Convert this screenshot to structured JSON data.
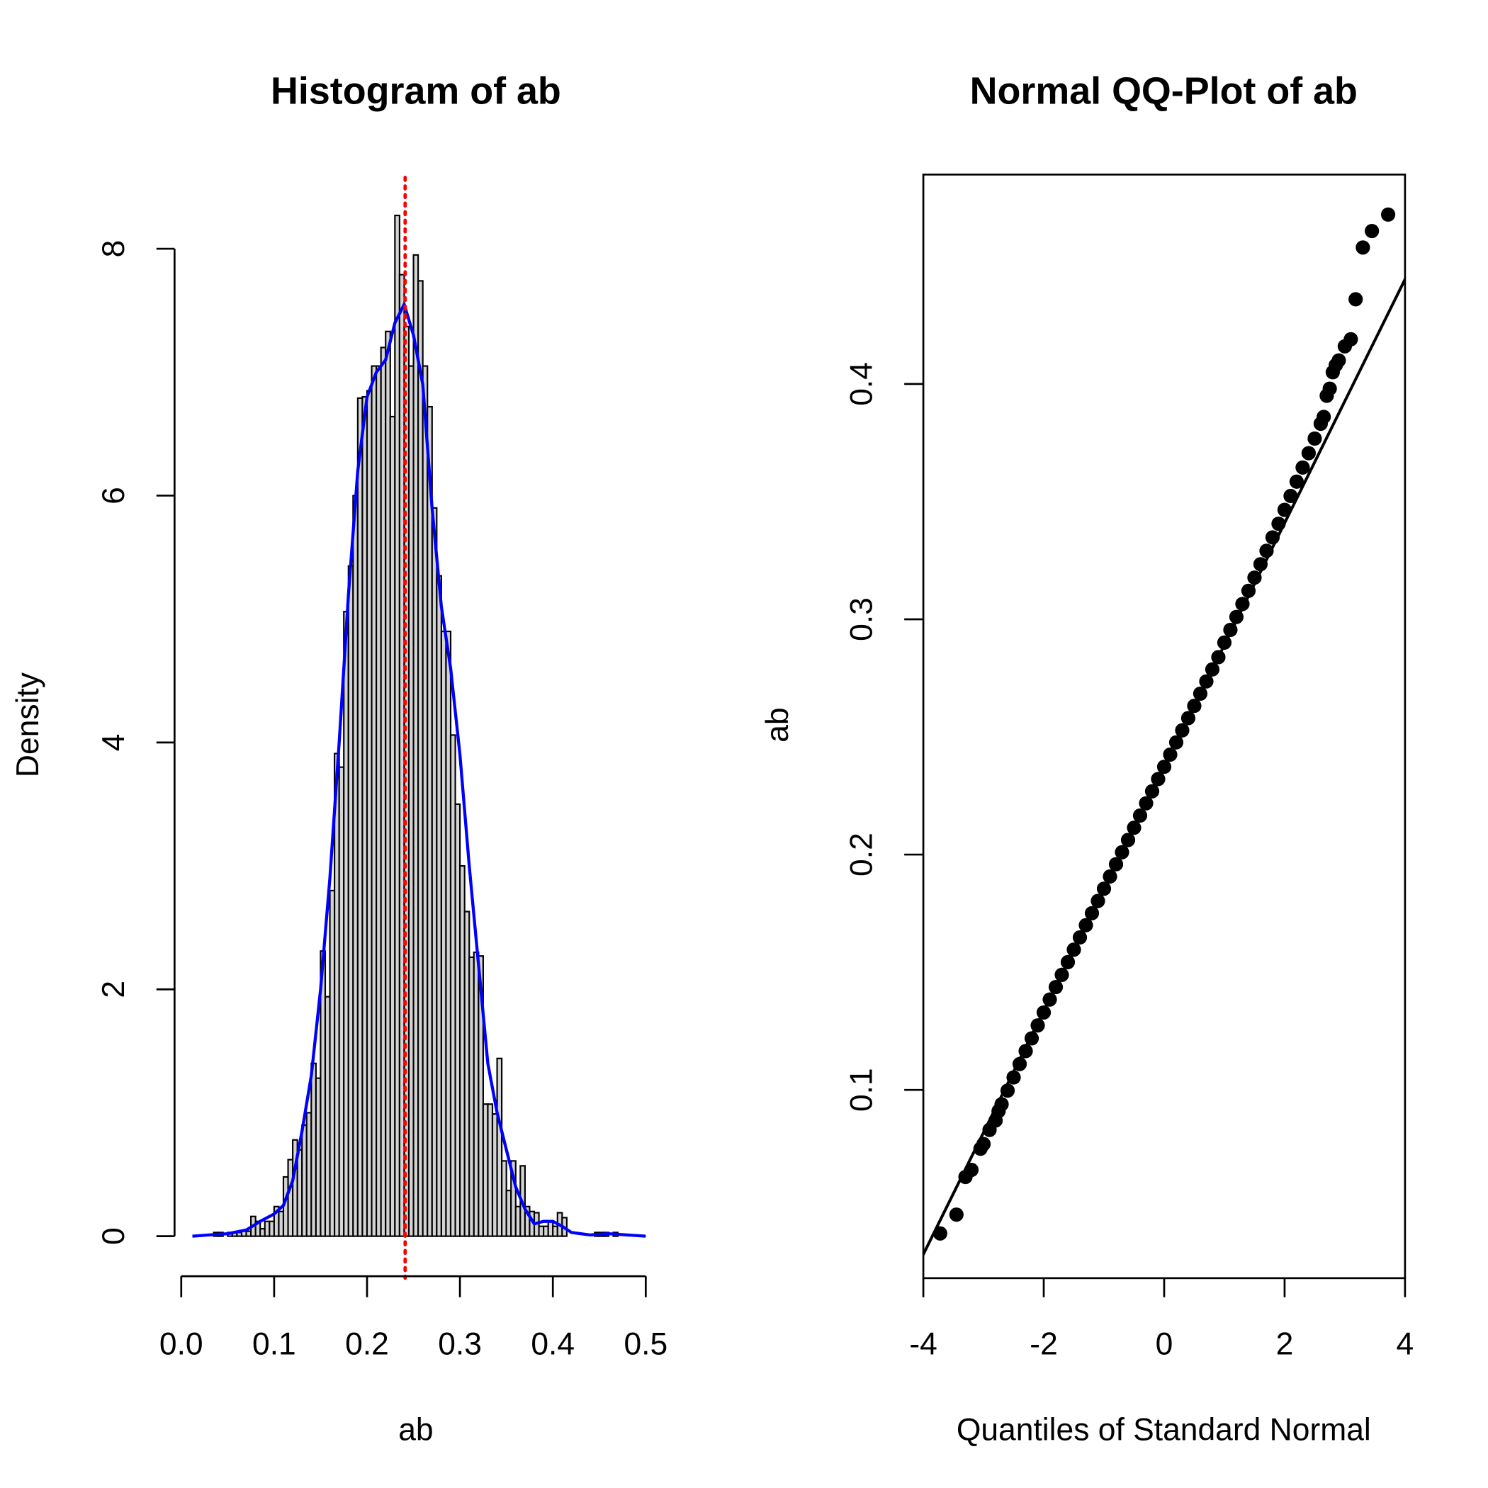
{
  "chart_data": [
    {
      "type": "bar",
      "subtype": "histogram with density curve",
      "title": "Histogram of ab",
      "xlabel": "ab",
      "ylabel": "Density",
      "xlim": [
        0.0,
        0.5
      ],
      "ylim": [
        0,
        8
      ],
      "xticks": [
        "0.0",
        "0.1",
        "0.2",
        "0.3",
        "0.4",
        "0.5"
      ],
      "yticks": [
        "0",
        "2",
        "4",
        "6",
        "8"
      ],
      "grid": false,
      "bin_width": 0.005,
      "bin_starts": [
        0.035,
        0.04,
        0.045,
        0.05,
        0.055,
        0.06,
        0.065,
        0.07,
        0.075,
        0.08,
        0.085,
        0.09,
        0.095,
        0.1,
        0.105,
        0.11,
        0.115,
        0.12,
        0.125,
        0.13,
        0.135,
        0.14,
        0.145,
        0.15,
        0.155,
        0.16,
        0.165,
        0.17,
        0.175,
        0.18,
        0.185,
        0.19,
        0.195,
        0.2,
        0.205,
        0.21,
        0.215,
        0.22,
        0.225,
        0.23,
        0.235,
        0.24,
        0.245,
        0.25,
        0.255,
        0.26,
        0.265,
        0.27,
        0.275,
        0.28,
        0.285,
        0.29,
        0.295,
        0.3,
        0.305,
        0.31,
        0.315,
        0.32,
        0.325,
        0.33,
        0.335,
        0.34,
        0.345,
        0.35,
        0.355,
        0.36,
        0.365,
        0.37,
        0.375,
        0.38,
        0.385,
        0.39,
        0.395,
        0.4,
        0.405,
        0.41,
        0.415,
        0.42,
        0.425,
        0.43,
        0.435,
        0.44,
        0.445,
        0.45,
        0.455,
        0.46,
        0.465,
        0.47,
        0.475
      ],
      "densities": [
        0.03,
        0.03,
        0.0,
        0.03,
        0.03,
        0.03,
        0.04,
        0.04,
        0.16,
        0.12,
        0.06,
        0.12,
        0.12,
        0.24,
        0.2,
        0.48,
        0.62,
        0.78,
        0.7,
        0.9,
        1.0,
        1.4,
        1.28,
        2.31,
        1.94,
        2.8,
        3.91,
        3.8,
        5.06,
        5.43,
        6.0,
        6.79,
        6.8,
        6.85,
        7.05,
        7.05,
        7.2,
        7.33,
        6.64,
        8.27,
        7.79,
        7.37,
        7.05,
        7.95,
        7.74,
        7.05,
        6.72,
        5.9,
        5.35,
        4.9,
        4.9,
        4.06,
        3.5,
        3.0,
        2.63,
        2.26,
        2.3,
        2.27,
        1.07,
        1.07,
        0.99,
        1.44,
        0.61,
        0.37,
        0.61,
        0.24,
        0.57,
        0.24,
        0.2,
        0.19,
        0.08,
        0.08,
        0.12,
        0.08,
        0.19,
        0.15,
        0.0,
        0.0,
        0.0,
        0.0,
        0.0,
        0.0,
        0.03,
        0.03,
        0.03,
        0.0,
        0.03,
        0.0,
        0.0
      ],
      "bar_fill": "#d3d3d3",
      "density_curve": {
        "color": "#0000ff",
        "x": [
          0.012,
          0.03,
          0.05,
          0.07,
          0.085,
          0.1,
          0.11,
          0.12,
          0.13,
          0.14,
          0.15,
          0.16,
          0.17,
          0.18,
          0.19,
          0.2,
          0.21,
          0.22,
          0.23,
          0.24,
          0.25,
          0.26,
          0.27,
          0.28,
          0.29,
          0.3,
          0.31,
          0.32,
          0.33,
          0.34,
          0.35,
          0.36,
          0.37,
          0.38,
          0.39,
          0.4,
          0.41,
          0.42,
          0.44,
          0.46,
          0.48,
          0.5
        ],
        "y": [
          0.0,
          0.01,
          0.02,
          0.05,
          0.12,
          0.18,
          0.25,
          0.45,
          0.85,
          1.3,
          2.0,
          2.9,
          4.0,
          5.2,
          6.2,
          6.8,
          7.0,
          7.1,
          7.4,
          7.55,
          7.3,
          6.9,
          5.9,
          5.1,
          4.6,
          3.9,
          3.0,
          2.2,
          1.4,
          1.0,
          0.7,
          0.4,
          0.22,
          0.1,
          0.12,
          0.12,
          0.08,
          0.03,
          0.01,
          0.02,
          0.01,
          0.0
        ]
      },
      "mean_line": {
        "x": 0.241,
        "color": "#ff0000",
        "style": "dotted"
      }
    },
    {
      "type": "scatter",
      "subtype": "normal QQ plot",
      "title": "Normal QQ-Plot of ab",
      "xlabel": "Quantiles of Standard Normal",
      "ylabel": "ab",
      "xlim": [
        -4,
        4
      ],
      "ylim": [
        0.02,
        0.489
      ],
      "xticks": [
        "-4",
        "-2",
        "0",
        "2",
        "4"
      ],
      "yticks": [
        "0.1",
        "0.2",
        "0.3",
        "0.4"
      ],
      "grid": false,
      "reference_line": {
        "intercept": 0.2373,
        "slope": 0.0518,
        "color": "#000000"
      },
      "points": {
        "x": [
          -3.72,
          -3.45,
          -3.3,
          -3.2,
          -3.05,
          -3.0,
          -2.9,
          -2.8,
          -2.75,
          -2.7,
          -2.6,
          -2.5,
          -2.4,
          -2.3,
          -2.2,
          -2.1,
          -2.0,
          -1.9,
          -1.8,
          -1.7,
          -1.6,
          -1.5,
          -1.4,
          -1.3,
          -1.2,
          -1.1,
          -1.0,
          -0.9,
          -0.8,
          -0.7,
          -0.6,
          -0.5,
          -0.4,
          -0.3,
          -0.2,
          -0.1,
          0.0,
          0.1,
          0.2,
          0.3,
          0.4,
          0.5,
          0.6,
          0.7,
          0.8,
          0.9,
          1.0,
          1.1,
          1.2,
          1.3,
          1.4,
          1.5,
          1.6,
          1.7,
          1.8,
          1.9,
          2.0,
          2.1,
          2.2,
          2.3,
          2.4,
          2.5,
          2.6,
          2.65,
          2.7,
          2.75,
          2.8,
          2.85,
          2.9,
          3.0,
          3.1,
          3.18,
          3.3,
          3.45,
          3.72
        ],
        "y": [
          0.039,
          0.047,
          0.063,
          0.066,
          0.075,
          0.077,
          0.083,
          0.087,
          0.091,
          0.0939,
          0.0997,
          0.1053,
          0.111,
          0.1165,
          0.1219,
          0.1274,
          0.1329,
          0.1384,
          0.1437,
          0.1489,
          0.1543,
          0.1596,
          0.1648,
          0.17,
          0.1751,
          0.1803,
          0.1855,
          0.1907,
          0.1959,
          0.201,
          0.2062,
          0.2114,
          0.2166,
          0.2218,
          0.2269,
          0.2321,
          0.2373,
          0.2425,
          0.2477,
          0.2528,
          0.258,
          0.2632,
          0.2684,
          0.2736,
          0.2787,
          0.2839,
          0.2901,
          0.2955,
          0.301,
          0.3065,
          0.3121,
          0.3177,
          0.3234,
          0.3291,
          0.3348,
          0.3406,
          0.3465,
          0.3524,
          0.3585,
          0.3645,
          0.3706,
          0.3768,
          0.3831,
          0.386,
          0.395,
          0.398,
          0.405,
          0.408,
          0.41,
          0.416,
          0.419,
          0.436,
          0.458,
          0.465,
          0.472
        ]
      }
    }
  ]
}
